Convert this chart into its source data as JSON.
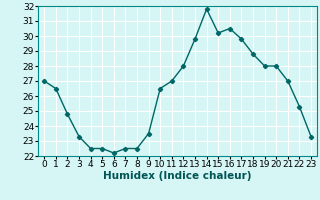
{
  "x": [
    0,
    1,
    2,
    3,
    4,
    5,
    6,
    7,
    8,
    9,
    10,
    11,
    12,
    13,
    14,
    15,
    16,
    17,
    18,
    19,
    20,
    21,
    22,
    23
  ],
  "y": [
    27.0,
    26.5,
    24.8,
    23.3,
    22.5,
    22.5,
    22.2,
    22.5,
    22.5,
    23.5,
    26.5,
    27.0,
    28.0,
    29.8,
    31.8,
    30.2,
    30.5,
    29.8,
    28.8,
    28.0,
    28.0,
    27.0,
    25.3,
    23.3
  ],
  "line_color": "#006666",
  "marker": "D",
  "marker_size": 2.2,
  "linewidth": 1.0,
  "bg_color": "#d6f5f5",
  "grid_color": "#ffffff",
  "xlabel": "Humidex (Indice chaleur)",
  "xlabel_fontsize": 7.5,
  "tick_fontsize": 6.5,
  "ylim": [
    22,
    32
  ],
  "yticks": [
    22,
    23,
    24,
    25,
    26,
    27,
    28,
    29,
    30,
    31,
    32
  ],
  "xtick_labels": [
    "0",
    "1",
    "2",
    "3",
    "4",
    "5",
    "6",
    "7",
    "8",
    "9",
    "10",
    "11",
    "12",
    "13",
    "14",
    "15",
    "16",
    "17",
    "18",
    "19",
    "20",
    "21",
    "22",
    "23"
  ]
}
